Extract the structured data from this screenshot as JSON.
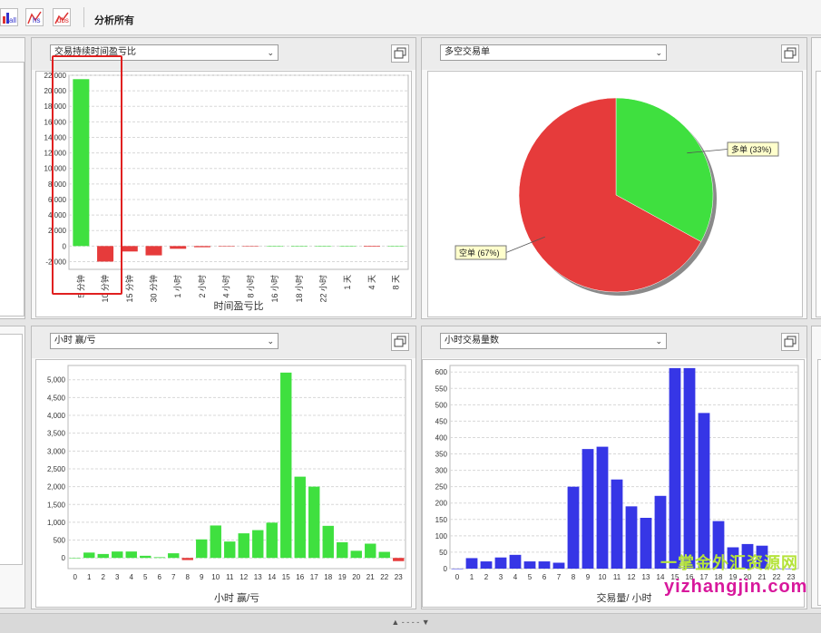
{
  "toolbar": {
    "analyze_all_label": "分析所有",
    "icons": [
      "bar-chart-all-icon",
      "hs-chart-icon",
      "dbs-chart-icon"
    ]
  },
  "panels": {
    "duration": {
      "dropdown": "交易持续时间盈亏比",
      "xlabel": "时间盈亏比"
    },
    "longshort": {
      "dropdown": "多空交易单"
    },
    "hourly_pnl": {
      "dropdown": "小时 赢/亏",
      "xlabel": "小时 赢/亏"
    },
    "hourly_count": {
      "dropdown": "小时交易量数",
      "xlabel": "交易量/ 小时"
    }
  },
  "bottom_bar": {
    "text": "▲ - - - - ▼"
  },
  "watermark": {
    "line1": "一掌金外汇资源网",
    "line2": "yizhangjin.com"
  },
  "colors": {
    "green": "#3fe03f",
    "red": "#e63b3b",
    "blue": "#3636e6",
    "highlight": "#e02020"
  },
  "chart_data": [
    {
      "type": "bar",
      "title": "",
      "xlabel": "时间盈亏比",
      "ylabel": "",
      "ylim": [
        -3000,
        22000
      ],
      "yticks": [
        -2000,
        0,
        2000,
        4000,
        6000,
        8000,
        10000,
        12000,
        14000,
        16000,
        18000,
        20000,
        22000
      ],
      "ytick_labels": [
        "-2,000",
        "0",
        "2,000",
        "4,000",
        "6,000",
        "8,000",
        "10,000",
        "12,000",
        "14,000",
        "16,000",
        "18,000",
        "20,000",
        "22,000"
      ],
      "categories": [
        "5 分钟",
        "10 分钟",
        "15 分钟",
        "30 分钟",
        "1 小时",
        "2 小时",
        "4 小时",
        "8 小时",
        "16 小时",
        "18 小时",
        "22 小时",
        "1 天",
        "4 天",
        "8 天"
      ],
      "values": [
        21500,
        -2000,
        -700,
        -1200,
        -350,
        -150,
        -50,
        -30,
        0,
        0,
        0,
        0,
        -80,
        0
      ],
      "grid": true
    },
    {
      "type": "pie",
      "title": "",
      "labels": [
        "多单 (33%)",
        "空单 (67%)"
      ],
      "values": [
        33,
        67
      ]
    },
    {
      "type": "bar",
      "title": "",
      "xlabel": "小时 赢/亏",
      "ylabel": "",
      "ylim": [
        -300,
        5400
      ],
      "yticks": [
        0,
        500,
        1000,
        1500,
        2000,
        2500,
        3000,
        3500,
        4000,
        4500,
        5000
      ],
      "ytick_labels": [
        "0",
        "500",
        "1,000",
        "1,500",
        "2,000",
        "2,500",
        "3,000",
        "3,500",
        "4,000",
        "4,500",
        "5,000"
      ],
      "categories": [
        "0",
        "1",
        "2",
        "3",
        "4",
        "5",
        "6",
        "7",
        "8",
        "9",
        "10",
        "11",
        "12",
        "13",
        "14",
        "15",
        "16",
        "17",
        "18",
        "19",
        "20",
        "21",
        "22",
        "23"
      ],
      "values": [
        0,
        150,
        110,
        180,
        180,
        60,
        20,
        130,
        -60,
        520,
        910,
        460,
        690,
        780,
        990,
        5200,
        2280,
        2000,
        900,
        440,
        200,
        400,
        170,
        -90
      ],
      "grid": true
    },
    {
      "type": "bar",
      "title": "",
      "xlabel": "交易量/ 小时",
      "ylabel": "",
      "ylim": [
        0,
        620
      ],
      "yticks": [
        0,
        50,
        100,
        150,
        200,
        250,
        300,
        350,
        400,
        450,
        500,
        550,
        600
      ],
      "ytick_labels": [
        "0",
        "50",
        "100",
        "150",
        "200",
        "250",
        "300",
        "350",
        "400",
        "450",
        "500",
        "550",
        "600"
      ],
      "categories": [
        "0",
        "1",
        "2",
        "3",
        "4",
        "5",
        "6",
        "7",
        "8",
        "9",
        "10",
        "11",
        "12",
        "13",
        "14",
        "15",
        "16",
        "17",
        "18",
        "19",
        "20",
        "21",
        "22",
        "23"
      ],
      "values": [
        0,
        32,
        22,
        34,
        42,
        22,
        22,
        18,
        250,
        365,
        372,
        272,
        190,
        155,
        222,
        612,
        612,
        475,
        145,
        65,
        75,
        70,
        0,
        0
      ],
      "grid": true
    }
  ]
}
